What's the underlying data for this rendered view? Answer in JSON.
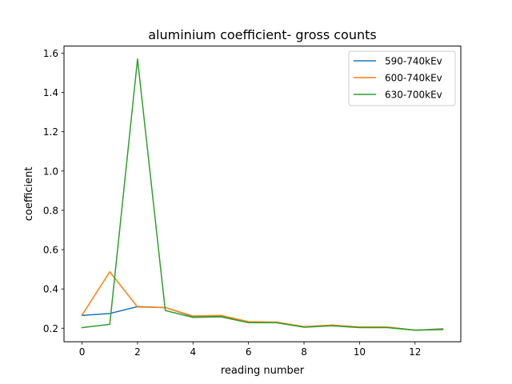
{
  "chart_data": {
    "type": "line",
    "title": "aluminium coefficient- gross counts",
    "xlabel": "reading number",
    "ylabel": "coefficient",
    "xlim": [
      -0.65,
      13.65
    ],
    "ylim": [
      0.131,
      1.636
    ],
    "xticks": [
      0,
      2,
      4,
      6,
      8,
      10,
      12
    ],
    "yticks": [
      0.2,
      0.4,
      0.6,
      0.8,
      1.0,
      1.2,
      1.4,
      1.6
    ],
    "xtick_labels": [
      "0",
      "2",
      "4",
      "6",
      "8",
      "10",
      "12"
    ],
    "ytick_labels": [
      "0.2",
      "0.4",
      "0.6",
      "0.8",
      "1.0",
      "1.2",
      "1.4",
      "1.6"
    ],
    "grid": false,
    "legend_position": "top-right",
    "x": [
      0,
      1,
      2,
      3,
      4,
      5,
      6,
      7,
      8,
      9,
      10,
      11,
      12,
      13
    ],
    "series": [
      {
        "name": "590-740kEv",
        "color": "#1f77b4",
        "values": [
          0.265,
          0.275,
          0.31,
          0.305,
          0.26,
          0.262,
          0.232,
          0.23,
          0.207,
          0.215,
          0.205,
          0.205,
          0.19,
          0.197
        ]
      },
      {
        "name": "600-740kEv",
        "color": "#ff7f0e",
        "values": [
          0.267,
          0.487,
          0.308,
          0.305,
          0.262,
          0.265,
          0.233,
          0.231,
          0.208,
          0.216,
          0.206,
          0.206,
          0.19,
          0.195
        ]
      },
      {
        "name": "630-700kEv",
        "color": "#2ca02c",
        "values": [
          0.203,
          0.22,
          1.57,
          0.29,
          0.255,
          0.258,
          0.228,
          0.228,
          0.205,
          0.212,
          0.203,
          0.203,
          0.19,
          0.193
        ]
      }
    ]
  }
}
